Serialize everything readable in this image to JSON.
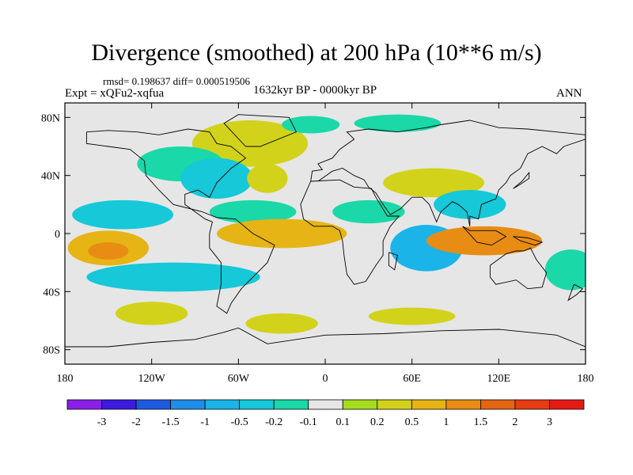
{
  "title": "Divergence (smoothed) at 200 hPa (10**6 m/s)",
  "stats": "rmsd= 0.198637 diff= 0.000519506",
  "expt": "Expt = xQFu2-xqfua",
  "period": "1632kyr BP - 0000kyr BP",
  "season": "ANN",
  "chart_data": {
    "type": "heatmap",
    "title": "Divergence (smoothed) at 200 hPa (10**6 m/s)",
    "x_ticks": [
      "180",
      "120W",
      "60W",
      "0",
      "60E",
      "120E",
      "180"
    ],
    "x_values": [
      -180,
      -120,
      -60,
      0,
      60,
      120,
      180
    ],
    "y_ticks": [
      "80N",
      "40N",
      "0",
      "40S",
      "80S"
    ],
    "y_values": [
      80,
      40,
      0,
      -40,
      -80
    ],
    "xlim": [
      -180,
      180
    ],
    "ylim": [
      -90,
      90
    ],
    "colorbar": {
      "labels": [
        "-3",
        "-2",
        "-1.5",
        "-1",
        "-0.5",
        "-0.2",
        "-0.1",
        "0.1",
        "0.2",
        "0.5",
        "1",
        "1.5",
        "2",
        "3"
      ],
      "colors": [
        "#8a1fe8",
        "#3c1ae0",
        "#1e5ae0",
        "#1e8ee8",
        "#1ab4e8",
        "#16c8d8",
        "#1ad8a8",
        "#e6e6e6",
        "#a6dc1e",
        "#d2d21a",
        "#e6b414",
        "#e88c14",
        "#e66414",
        "#e63c14",
        "#e41a14"
      ]
    },
    "regions": [
      {
        "value": 0.2,
        "lon": -52,
        "lat": 62,
        "rx": 40,
        "ry": 16
      },
      {
        "value": -0.2,
        "lon": -100,
        "lat": 48,
        "rx": 30,
        "ry": 12
      },
      {
        "value": -0.5,
        "lon": -75,
        "lat": 38,
        "rx": 25,
        "ry": 14
      },
      {
        "value": 0.2,
        "lon": -40,
        "lat": 38,
        "rx": 14,
        "ry": 10
      },
      {
        "value": 0.2,
        "lon": 75,
        "lat": 35,
        "rx": 35,
        "ry": 10
      },
      {
        "value": -0.2,
        "lon": -10,
        "lat": 75,
        "rx": 20,
        "ry": 6
      },
      {
        "value": -0.2,
        "lon": 50,
        "lat": 76,
        "rx": 30,
        "ry": 6
      },
      {
        "value": -0.5,
        "lon": -140,
        "lat": 13,
        "rx": 35,
        "ry": 10
      },
      {
        "value": -0.2,
        "lon": -50,
        "lat": 15,
        "rx": 30,
        "ry": 8
      },
      {
        "value": -0.2,
        "lon": 30,
        "lat": 15,
        "rx": 25,
        "ry": 8
      },
      {
        "value": -0.5,
        "lon": 100,
        "lat": 20,
        "rx": 25,
        "ry": 10
      },
      {
        "value": 0.5,
        "lon": -150,
        "lat": -10,
        "rx": 28,
        "ry": 12
      },
      {
        "value": 1.0,
        "lon": -150,
        "lat": -12,
        "rx": 14,
        "ry": 6
      },
      {
        "value": 0.5,
        "lon": -30,
        "lat": 0,
        "rx": 45,
        "ry": 10
      },
      {
        "value": -1.0,
        "lon": 70,
        "lat": -10,
        "rx": 25,
        "ry": 16
      },
      {
        "value": 1.0,
        "lon": 110,
        "lat": -5,
        "rx": 40,
        "ry": 10
      },
      {
        "value": -0.5,
        "lon": -105,
        "lat": -30,
        "rx": 60,
        "ry": 10
      },
      {
        "value": -0.2,
        "lon": 170,
        "lat": -25,
        "rx": 18,
        "ry": 14
      },
      {
        "value": 0.2,
        "lon": -120,
        "lat": -55,
        "rx": 25,
        "ry": 8
      },
      {
        "value": 0.2,
        "lon": -30,
        "lat": -62,
        "rx": 25,
        "ry": 7
      },
      {
        "value": 0.2,
        "lon": 60,
        "lat": -57,
        "rx": 30,
        "ry": 6
      }
    ]
  }
}
